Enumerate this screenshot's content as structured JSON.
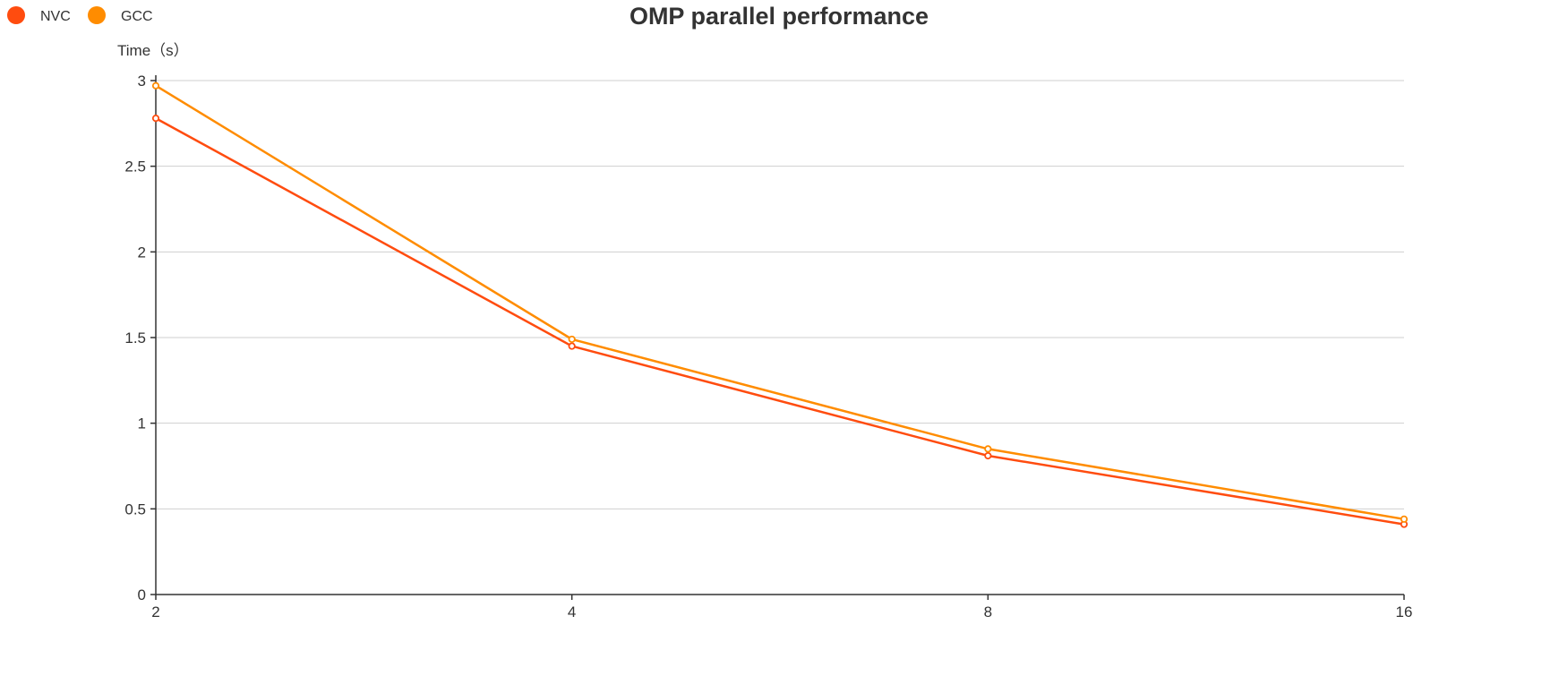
{
  "chart_data": {
    "type": "line",
    "title": "OMP parallel performance",
    "ylabel": "Time（s）",
    "xlabel": "",
    "categories": [
      "2",
      "4",
      "8",
      "16"
    ],
    "series": [
      {
        "name": "NVC",
        "color": "#ff4c0f",
        "values": [
          2.78,
          1.45,
          0.81,
          0.41
        ]
      },
      {
        "name": "GCC",
        "color": "#ff8c00",
        "values": [
          2.97,
          1.49,
          0.85,
          0.44
        ]
      }
    ],
    "ylim": [
      0,
      3
    ],
    "yticks": [
      "0",
      "0.5",
      "1",
      "1.5",
      "2",
      "2.5",
      "3"
    ],
    "grid": true,
    "legend_position": "top-left"
  }
}
